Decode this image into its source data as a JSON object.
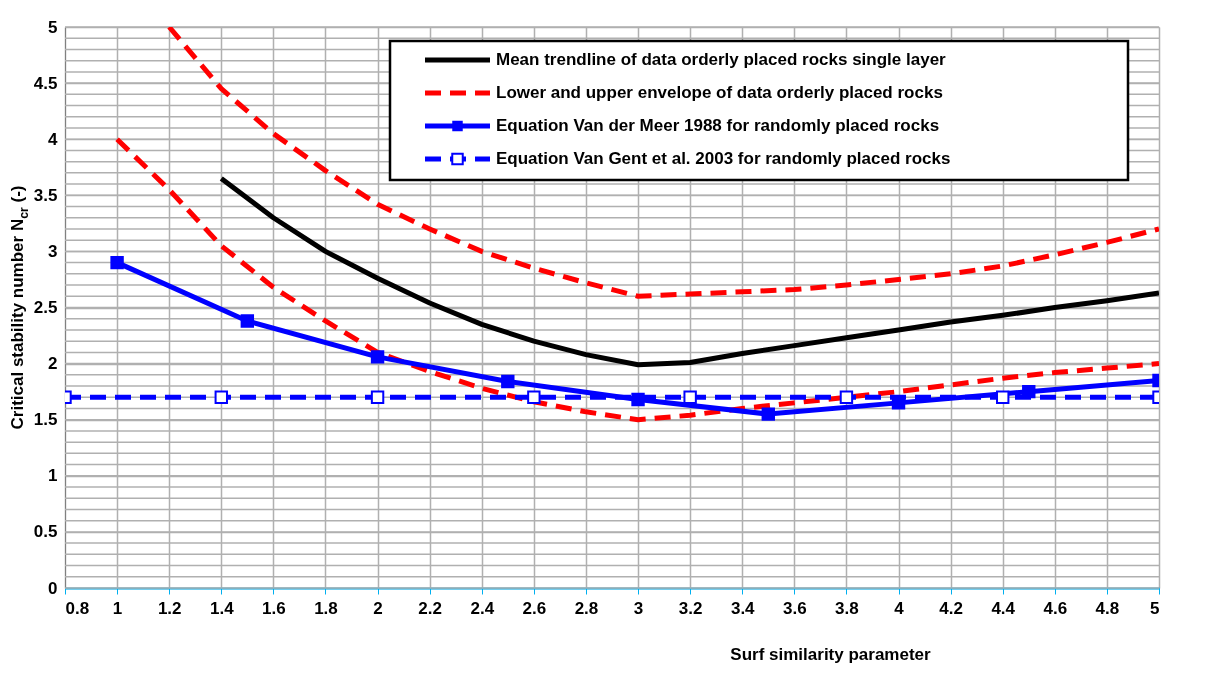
{
  "chart_data": {
    "type": "line",
    "xlabel": "Surf similarity parameter",
    "ylabel": "Critical stability number N$_{cr}$ (-)",
    "xlim": [
      0.8,
      5
    ],
    "ylim": [
      0,
      5
    ],
    "xticks": [
      0.8,
      1,
      1.2,
      1.4,
      1.6,
      1.8,
      2,
      2.2,
      2.4,
      2.6,
      2.8,
      3,
      3.2,
      3.4,
      3.6,
      3.8,
      4,
      4.2,
      4.4,
      4.6,
      4.8,
      5
    ],
    "yticks": [
      0,
      0.5,
      1,
      1.5,
      2,
      2.5,
      3,
      3.5,
      4,
      4.5,
      5
    ],
    "grid": true,
    "legend": "top right",
    "series": [
      {
        "name": "Mean trendline of data orderly placed rocks single layer",
        "color": "#000000",
        "line_style": "solid",
        "marker": "none",
        "x": [
          1.4,
          1.6,
          1.8,
          2.0,
          2.2,
          2.4,
          2.6,
          2.8,
          3.0,
          3.2,
          3.4,
          3.6,
          3.8,
          4.0,
          4.2,
          4.4,
          4.6,
          4.8,
          5.0
        ],
        "values": [
          3.65,
          3.3,
          3.0,
          2.76,
          2.54,
          2.35,
          2.2,
          2.08,
          1.99,
          2.01,
          2.09,
          2.16,
          2.23,
          2.3,
          2.37,
          2.43,
          2.5,
          2.56,
          2.63
        ]
      },
      {
        "name": "Lower and upper envelope of data orderly placed rocks",
        "color": "#ff0000",
        "line_style": "dashed",
        "marker": "none",
        "x": [
          1.2,
          1.4,
          1.6,
          1.8,
          2.0,
          2.2,
          2.4,
          2.6,
          2.8,
          3.0,
          3.2,
          3.4,
          3.6,
          3.8,
          4.0,
          4.2,
          4.4,
          4.6,
          4.8,
          5.0
        ],
        "values": [
          5.0,
          4.45,
          4.05,
          3.72,
          3.42,
          3.2,
          3.0,
          2.85,
          2.72,
          2.6,
          2.62,
          2.64,
          2.66,
          2.7,
          2.75,
          2.8,
          2.87,
          2.97,
          3.08,
          3.2
        ]
      },
      {
        "color": "#ff0000",
        "line_style": "dashed",
        "marker": "none",
        "x": [
          1.0,
          1.2,
          1.4,
          1.6,
          1.8,
          2.0,
          2.2,
          2.4,
          2.6,
          2.8,
          3.0,
          3.2,
          3.4,
          3.6,
          3.8,
          4.0,
          4.2,
          4.4,
          4.6,
          4.8,
          5.0
        ],
        "values": [
          4.0,
          3.55,
          3.05,
          2.68,
          2.38,
          2.1,
          1.93,
          1.78,
          1.66,
          1.57,
          1.5,
          1.54,
          1.6,
          1.65,
          1.7,
          1.75,
          1.81,
          1.87,
          1.92,
          1.96,
          2.0
        ]
      },
      {
        "name": "Equation Van der Meer 1988 for randomly placed rocks",
        "color": "#0000ff",
        "line_style": "solid",
        "marker": "square",
        "x": [
          1.0,
          1.5,
          2.0,
          2.5,
          3.0,
          3.5,
          4.0,
          4.5,
          5.0
        ],
        "values": [
          2.9,
          2.38,
          2.06,
          1.84,
          1.68,
          1.55,
          1.65,
          1.75,
          1.85
        ]
      },
      {
        "name": "Equation Van Gent et al. 2003 for randomly placed rocks",
        "color": "#0000ff",
        "line_style": "dashed",
        "marker": "square_open",
        "x": [
          0.8,
          1.4,
          2.0,
          2.6,
          3.2,
          3.8,
          4.4,
          5.0
        ],
        "values": [
          1.7,
          1.7,
          1.7,
          1.7,
          1.7,
          1.7,
          1.7,
          1.7
        ]
      }
    ]
  }
}
